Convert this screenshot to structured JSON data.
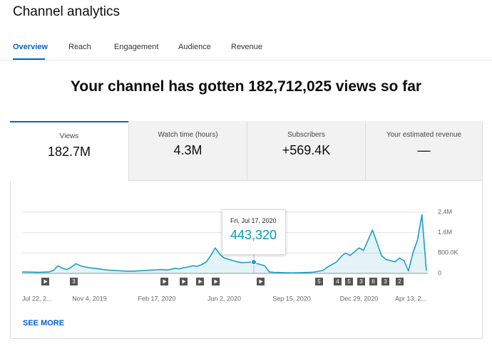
{
  "header": {
    "title": "Channel analytics"
  },
  "tabs": [
    "Overview",
    "Reach",
    "Engagement",
    "Audience",
    "Revenue"
  ],
  "headline": "Your channel has gotten 182,712,025 views so far",
  "metrics": [
    {
      "label": "Views",
      "value": "182.7M"
    },
    {
      "label": "Watch time (hours)",
      "value": "4.3M"
    },
    {
      "label": "Subscribers",
      "value": "+569.4K"
    },
    {
      "label": "Your estimated revenue",
      "value": "—"
    }
  ],
  "see_more": "SEE MORE",
  "chart_data": {
    "type": "line",
    "color": "#1ca0c4",
    "categories": [
      "Jul 22, 2...",
      null,
      null,
      null,
      null,
      null,
      null,
      null,
      null,
      null,
      null,
      null,
      null,
      null,
      null,
      "Nov 4, 2019",
      null,
      null,
      null,
      null,
      null,
      null,
      null,
      null,
      null,
      null,
      null,
      null,
      null,
      null,
      "Feb 17, 2020",
      null,
      null,
      null,
      null,
      null,
      null,
      null,
      null,
      null,
      null,
      null,
      null,
      null,
      null,
      "Jun 2, 2020",
      null,
      null,
      null,
      null,
      null,
      null,
      null,
      null,
      null,
      null,
      null,
      null,
      null,
      null,
      "Sep 15, 2020",
      null,
      null,
      null,
      null,
      null,
      null,
      null,
      null,
      null,
      null,
      null,
      null,
      null,
      null,
      "Dec 29, 2020",
      null,
      null,
      null,
      null,
      null,
      null,
      null,
      null,
      null,
      null,
      null,
      null,
      null,
      null,
      "Apr 13, 2..."
    ],
    "values": [
      60000,
      55000,
      50000,
      45000,
      45000,
      50000,
      60000,
      120000,
      300000,
      200000,
      150000,
      250000,
      380000,
      300000,
      250000,
      220000,
      200000,
      180000,
      150000,
      130000,
      120000,
      110000,
      100000,
      90000,
      80000,
      90000,
      100000,
      110000,
      120000,
      130000,
      140000,
      150000,
      130000,
      150000,
      200000,
      180000,
      220000,
      250000,
      300000,
      280000,
      350000,
      450000,
      700000,
      1000000,
      750000,
      600000,
      550000,
      500000,
      450000,
      420000,
      430000,
      443320,
      400000,
      350000,
      300000,
      60000,
      40000,
      35000,
      30000,
      25000,
      20000,
      25000,
      30000,
      35000,
      40000,
      50000,
      80000,
      120000,
      250000,
      350000,
      450000,
      650000,
      800000,
      700000,
      850000,
      1000000,
      900000,
      1300000,
      1700000,
      1200000,
      700000,
      550000,
      500000,
      450000,
      600000,
      500000,
      100000,
      800000,
      1300000,
      2300000,
      100000
    ],
    "ylim": [
      0,
      2400000
    ],
    "yticks": [
      0,
      {
        "value": 800000,
        "label": "800.0K"
      },
      {
        "value": 1600000,
        "label": "1.6M"
      },
      {
        "value": 2400000,
        "label": "2.4M"
      }
    ],
    "grid": true,
    "annotations": [
      "3",
      "5",
      "4",
      "5",
      "3",
      "6",
      "3",
      "2"
    ],
    "tooltip": {
      "date": "Fri, Jul 17, 2020",
      "value": 443320,
      "label": "443,320"
    }
  }
}
